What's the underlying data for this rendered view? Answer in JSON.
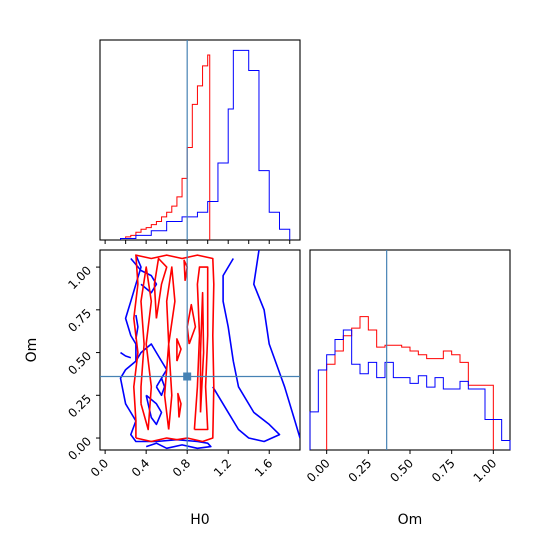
{
  "chart_data": {
    "type": "corner",
    "parameters": [
      "H0",
      "Om"
    ],
    "truths": {
      "H0": 0.8,
      "Om": 0.36
    },
    "colors": {
      "red": "#ff0000",
      "blue": "#0000ff",
      "truth": "#4682b4"
    },
    "panels": {
      "hist_H0": {
        "type": "histogram",
        "xlim": [
          -0.05,
          1.9
        ],
        "series": [
          {
            "color": "red",
            "bin_edges": [
              0.15,
              0.2,
              0.25,
              0.3,
              0.35,
              0.4,
              0.45,
              0.5,
              0.55,
              0.6,
              0.65,
              0.7,
              0.75,
              0.8,
              0.85,
              0.9,
              0.95,
              1.0,
              1.02
            ],
            "counts": [
              1,
              2,
              3,
              5,
              7,
              8,
              10,
              12,
              15,
              18,
              22,
              28,
              40,
              60,
              88,
              100,
              113,
              120
            ]
          },
          {
            "color": "blue",
            "bin_edges": [
              0.15,
              0.3,
              0.45,
              0.6,
              0.75,
              0.9,
              1.0,
              1.1,
              1.2,
              1.25,
              1.3,
              1.4,
              1.5,
              1.6,
              1.7,
              1.8
            ],
            "counts": [
              1,
              3,
              6,
              12,
              15,
              18,
              25,
              50,
              85,
              123,
              123,
              110,
              45,
              18,
              7
            ]
          }
        ]
      },
      "contour_H0_Om": {
        "type": "contour",
        "xlim": [
          -0.05,
          1.9
        ],
        "ylim": [
          -0.07,
          1.1
        ],
        "x_ticks": [
          "0.0",
          "0.4",
          "0.8",
          "1.2",
          "1.6"
        ],
        "y_ticks": [
          "0.00",
          "0.25",
          "0.50",
          "0.75",
          "1.00"
        ],
        "xlabel": "H0",
        "ylabel": "Om",
        "red_contours": [
          [
            [
              0.3,
              0.0
            ],
            [
              0.45,
              -0.02
            ],
            [
              0.6,
              0.0
            ],
            [
              0.7,
              -0.01
            ],
            [
              0.8,
              0.0
            ],
            [
              0.95,
              -0.02
            ],
            [
              1.05,
              0.0
            ],
            [
              1.06,
              0.3
            ],
            [
              1.05,
              0.6
            ],
            [
              1.06,
              0.9
            ],
            [
              1.05,
              1.05
            ],
            [
              0.9,
              1.07
            ],
            [
              0.75,
              1.05
            ],
            [
              0.6,
              1.07
            ],
            [
              0.45,
              1.05
            ],
            [
              0.3,
              1.07
            ],
            [
              0.32,
              0.9
            ],
            [
              0.28,
              0.7
            ],
            [
              0.32,
              0.5
            ],
            [
              0.28,
              0.3
            ],
            [
              0.3,
              0.1
            ],
            [
              0.3,
              0.0
            ]
          ],
          [
            [
              0.35,
              0.2
            ],
            [
              0.42,
              0.05
            ],
            [
              0.45,
              0.3
            ],
            [
              0.4,
              0.55
            ],
            [
              0.45,
              0.8
            ],
            [
              0.4,
              1.0
            ],
            [
              0.35,
              0.8
            ],
            [
              0.38,
              0.55
            ],
            [
              0.35,
              0.3
            ],
            [
              0.35,
              0.2
            ]
          ],
          [
            [
              0.5,
              0.7
            ],
            [
              0.55,
              0.9
            ],
            [
              0.6,
              1.0
            ],
            [
              0.52,
              1.05
            ],
            [
              0.48,
              0.9
            ],
            [
              0.5,
              0.7
            ]
          ],
          [
            [
              0.62,
              0.05
            ],
            [
              0.65,
              0.25
            ],
            [
              0.62,
              0.55
            ],
            [
              0.68,
              0.8
            ],
            [
              0.65,
              1.0
            ],
            [
              0.6,
              0.8
            ],
            [
              0.62,
              0.55
            ],
            [
              0.58,
              0.25
            ],
            [
              0.62,
              0.05
            ]
          ],
          [
            [
              0.87,
              0.05
            ],
            [
              0.9,
              0.3
            ],
            [
              0.92,
              0.6
            ],
            [
              0.9,
              0.9
            ],
            [
              0.92,
              1.0
            ],
            [
              1.0,
              1.0
            ],
            [
              1.0,
              0.6
            ],
            [
              0.98,
              0.3
            ],
            [
              1.0,
              0.05
            ],
            [
              0.87,
              0.05
            ]
          ],
          [
            [
              0.93,
              0.15
            ],
            [
              0.96,
              0.5
            ],
            [
              0.95,
              0.85
            ],
            [
              0.93,
              0.5
            ],
            [
              0.93,
              0.15
            ]
          ],
          [
            [
              0.82,
              0.55
            ],
            [
              0.88,
              0.65
            ],
            [
              0.84,
              0.78
            ],
            [
              0.8,
              0.65
            ],
            [
              0.82,
              0.55
            ]
          ],
          [
            [
              0.7,
              0.45
            ],
            [
              0.74,
              0.52
            ],
            [
              0.7,
              0.58
            ],
            [
              0.7,
              0.45
            ]
          ],
          [
            [
              0.72,
              0.12
            ],
            [
              0.74,
              0.2
            ],
            [
              0.71,
              0.26
            ],
            [
              0.72,
              0.12
            ]
          ],
          [
            [
              0.78,
              0.92
            ],
            [
              0.8,
              1.0
            ],
            [
              0.77,
              1.04
            ],
            [
              0.78,
              0.92
            ]
          ]
        ],
        "blue_contours": [
          [
            [
              1.5,
              1.1
            ],
            [
              1.45,
              0.9
            ],
            [
              1.55,
              0.75
            ],
            [
              1.6,
              0.55
            ],
            [
              1.75,
              0.3
            ],
            [
              1.85,
              0.1
            ],
            [
              1.9,
              0.0
            ]
          ],
          [
            [
              1.25,
              1.05
            ],
            [
              1.15,
              0.95
            ],
            [
              1.15,
              0.8
            ],
            [
              1.2,
              0.65
            ],
            [
              1.25,
              0.45
            ],
            [
              1.3,
              0.3
            ],
            [
              1.45,
              0.15
            ],
            [
              1.6,
              0.08
            ],
            [
              1.7,
              0.02
            ],
            [
              1.55,
              -0.02
            ],
            [
              1.4,
              0.0
            ],
            [
              1.3,
              0.05
            ],
            [
              1.2,
              0.15
            ],
            [
              1.1,
              0.25
            ],
            [
              1.05,
              0.3
            ]
          ],
          [
            [
              0.3,
              1.07
            ],
            [
              0.35,
              1.0
            ],
            [
              0.3,
              0.9
            ],
            [
              0.25,
              0.8
            ],
            [
              0.2,
              0.7
            ],
            [
              0.25,
              0.6
            ],
            [
              0.3,
              0.55
            ],
            [
              0.3,
              0.45
            ],
            [
              0.2,
              0.4
            ],
            [
              0.15,
              0.35
            ],
            [
              0.2,
              0.2
            ],
            [
              0.3,
              0.1
            ],
            [
              0.25,
              0.02
            ],
            [
              0.3,
              -0.02
            ],
            [
              0.5,
              -0.02
            ],
            [
              0.7,
              -0.01
            ],
            [
              0.9,
              -0.02
            ],
            [
              1.0,
              -0.03
            ],
            [
              1.03,
              -0.05
            ],
            [
              0.9,
              -0.06
            ],
            [
              0.75,
              -0.04
            ],
            [
              0.6,
              -0.06
            ],
            [
              0.5,
              -0.03
            ],
            [
              0.4,
              -0.05
            ]
          ],
          [
            [
              0.3,
              0.45
            ],
            [
              0.35,
              0.5
            ],
            [
              0.45,
              0.55
            ],
            [
              0.5,
              0.5
            ],
            [
              0.55,
              0.45
            ],
            [
              0.6,
              0.4
            ],
            [
              0.55,
              0.35
            ]
          ],
          [
            [
              0.4,
              0.25
            ],
            [
              0.5,
              0.2
            ],
            [
              0.55,
              0.15
            ],
            [
              0.5,
              0.08
            ],
            [
              0.45,
              0.12
            ],
            [
              0.4,
              0.25
            ]
          ],
          [
            [
              0.25,
              1.05
            ],
            [
              0.35,
              0.98
            ],
            [
              0.45,
              0.95
            ],
            [
              0.5,
              0.9
            ],
            [
              0.45,
              0.85
            ],
            [
              0.35,
              0.9
            ]
          ],
          [
            [
              0.15,
              0.5
            ],
            [
              0.2,
              0.48
            ],
            [
              0.25,
              0.47
            ]
          ],
          [
            [
              0.5,
              0.3
            ],
            [
              0.55,
              0.35
            ],
            [
              0.58,
              0.3
            ],
            [
              0.55,
              0.25
            ],
            [
              0.5,
              0.3
            ]
          ],
          [
            [
              0.3,
              0.72
            ],
            [
              0.32,
              0.65
            ],
            [
              0.3,
              0.58
            ]
          ]
        ]
      },
      "hist_Om": {
        "type": "histogram",
        "xlim": [
          -0.1,
          1.1
        ],
        "x_ticks": [
          "0.00",
          "0.25",
          "0.50",
          "0.75",
          "1.00"
        ],
        "xlabel": "Om",
        "series": [
          {
            "color": "red",
            "bin_edges": [
              0.0,
              0.05,
              0.1,
              0.15,
              0.2,
              0.25,
              0.3,
              0.35,
              0.4,
              0.45,
              0.5,
              0.55,
              0.6,
              0.65,
              0.7,
              0.75,
              0.8,
              0.85,
              0.9,
              0.95,
              1.0
            ],
            "counts": [
              45,
              52,
              60,
              64,
              70,
              63,
              54,
              55,
              55,
              54,
              52,
              50,
              48,
              48,
              52,
              50,
              46,
              34,
              34,
              34
            ]
          },
          {
            "color": "blue",
            "bin_edges": [
              -0.1,
              -0.05,
              0.0,
              0.05,
              0.1,
              0.15,
              0.2,
              0.25,
              0.3,
              0.35,
              0.4,
              0.45,
              0.5,
              0.55,
              0.6,
              0.65,
              0.7,
              0.75,
              0.8,
              0.85,
              0.9,
              0.95,
              1.0,
              1.05,
              1.1
            ],
            "counts": [
              20,
              42,
              50,
              58,
              63,
              45,
              40,
              46,
              38,
              46,
              38,
              38,
              35,
              39,
              33,
              38,
              32,
              32,
              36,
              32,
              32,
              16,
              16,
              5
            ]
          }
        ]
      }
    }
  }
}
